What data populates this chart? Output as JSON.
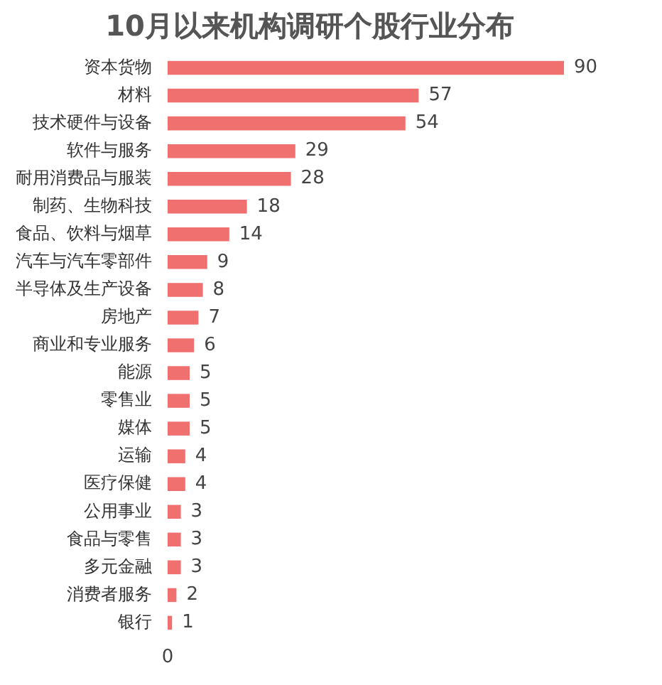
{
  "chart_data": {
    "type": "bar",
    "orientation": "horizontal",
    "title": "10月以来机构调研个股行业分布",
    "categories": [
      "资本货物",
      "材料",
      "技术硬件与设备",
      "软件与服务",
      "耐用消费品与服装",
      "制药、生物科技",
      "食品、饮料与烟草",
      "汽车与汽车零部件",
      "半导体及生产设备",
      "房地产",
      "商业和专业服务",
      "能源",
      "零售业",
      "媒体",
      "运输",
      "医疗保健",
      "公用事业",
      "食品与零售",
      "多元金融",
      "消费者服务",
      "银行"
    ],
    "values": [
      90,
      57,
      54,
      29,
      28,
      18,
      14,
      9,
      8,
      7,
      6,
      5,
      5,
      5,
      4,
      4,
      3,
      3,
      3,
      2,
      1
    ],
    "color": "#f07070",
    "data_labels": true,
    "tick_labels": "y",
    "annotations": [
      "0"
    ]
  }
}
